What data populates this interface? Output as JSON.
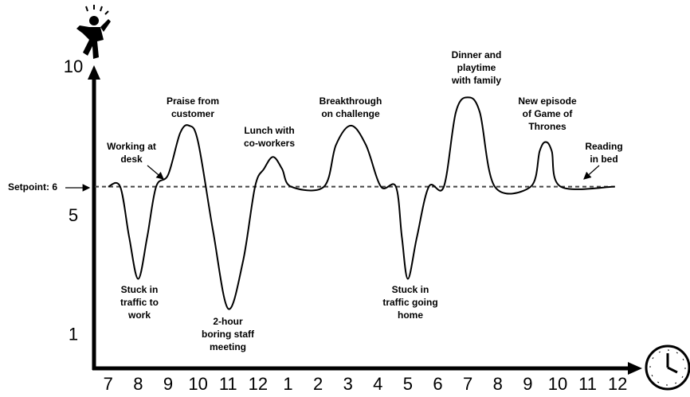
{
  "chart_data": {
    "type": "line",
    "x": [
      7.0,
      7.4,
      7.7,
      8.0,
      8.3,
      8.6,
      9.0,
      9.4,
      9.7,
      10.0,
      10.5,
      11.0,
      11.5,
      11.9,
      12.2,
      12.5,
      12.8,
      13.1,
      14.2,
      14.6,
      15.1,
      15.6,
      16.1,
      16.6,
      16.8,
      17.0,
      17.3,
      17.7,
      18.2,
      18.6,
      19.0,
      19.4,
      19.9,
      21.1,
      21.4,
      21.6,
      21.8,
      22.1,
      23.9
    ],
    "values": [
      6,
      6,
      4.3,
      2.9,
      4.3,
      6,
      6.4,
      7.8,
      8.05,
      7.5,
      4.5,
      1.9,
      3.5,
      6,
      6.6,
      7,
      6.6,
      6,
      6,
      7.4,
      8.05,
      7.4,
      6,
      6,
      4.3,
      2.9,
      4.3,
      6,
      6,
      8.5,
      9,
      8.5,
      6,
      6,
      7.2,
      7.5,
      7.2,
      6,
      6
    ],
    "color": "#000000",
    "setpoint": 6,
    "setpoint_label": "Setpoint: 6",
    "xlim": [
      6.5,
      24.5
    ],
    "xticks": [
      7,
      8,
      9,
      10,
      11,
      12,
      {
        "value": 13,
        "label": "1"
      },
      {
        "value": 14,
        "label": "2"
      },
      {
        "value": 15,
        "label": "3"
      },
      {
        "value": 16,
        "label": "4"
      },
      {
        "value": 17,
        "label": "5"
      },
      {
        "value": 18,
        "label": "6"
      },
      {
        "value": 19,
        "label": "7"
      },
      {
        "value": 20,
        "label": "8"
      },
      {
        "value": 21,
        "label": "9"
      },
      {
        "value": 22,
        "label": "10"
      },
      {
        "value": 23,
        "label": "11"
      },
      {
        "value": 24,
        "label": "12"
      }
    ],
    "ylim": [
      0,
      10
    ],
    "yticks": [
      1,
      5,
      10
    ],
    "annotations": [
      [
        "Stuck in",
        "traffic to",
        "work"
      ],
      [
        "Praise from",
        "customer"
      ],
      [
        "2-hour",
        "boring staff",
        "meeting"
      ],
      [
        "Lunch with",
        "co-workers"
      ],
      [
        "Working at",
        "desk"
      ],
      [
        "Breakthrough",
        "on challenge"
      ],
      [
        "Stuck in",
        "traffic going",
        "home"
      ],
      [
        "Dinner and",
        "playtime",
        "with family"
      ],
      [
        "New episode",
        "of Game of",
        "Thrones"
      ],
      [
        "Reading",
        "in bed"
      ]
    ]
  }
}
